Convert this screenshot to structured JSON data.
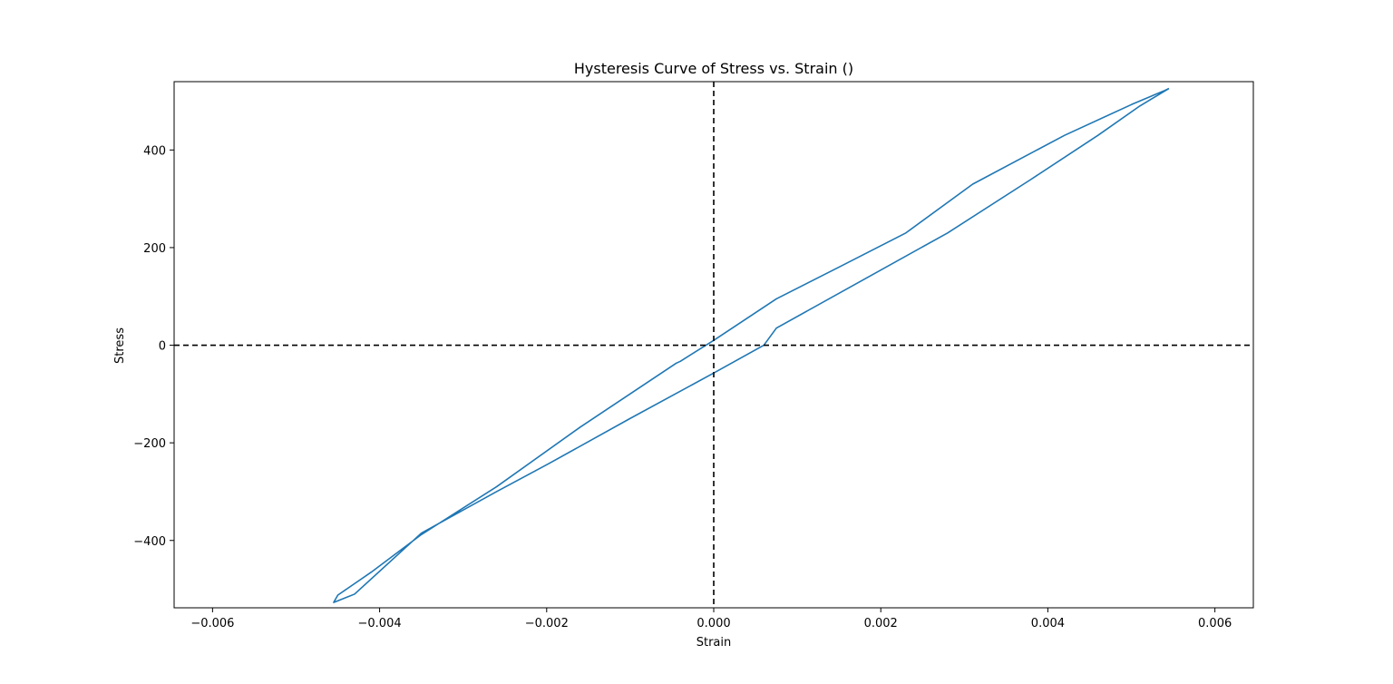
{
  "chart_data": {
    "type": "line",
    "title": "Hysteresis Curve of Stress vs. Strain ()",
    "xlabel": "Strain",
    "ylabel": "Stress",
    "xlim": [
      -0.00646,
      0.00646
    ],
    "ylim": [
      -538,
      540
    ],
    "x_ticks": [
      -0.006,
      -0.004,
      -0.002,
      0.0,
      0.002,
      0.004,
      0.006
    ],
    "x_tick_labels": [
      "−0.006",
      "−0.004",
      "−0.002",
      "0.000",
      "0.002",
      "0.004",
      "0.006"
    ],
    "y_ticks": [
      -400,
      -200,
      0,
      200,
      400
    ],
    "y_tick_labels": [
      "−400",
      "−200",
      "0",
      "200",
      "400"
    ],
    "grid": false,
    "reference_lines": [
      {
        "orientation": "horizontal",
        "value": 0,
        "style": "dashed",
        "color": "#000000"
      },
      {
        "orientation": "vertical",
        "value": 0,
        "style": "dashed",
        "color": "#000000"
      }
    ],
    "series": [
      {
        "color": "#1f77b4",
        "x": [
          0.00545,
          0.0051,
          0.0046,
          0.0038,
          0.0028,
          0.0018,
          0.00075,
          0.0006,
          0.0,
          -0.001,
          -0.002,
          -0.0026,
          -0.0035,
          -0.0043,
          -0.00455,
          -0.0045,
          -0.0041,
          -0.0035,
          -0.0026,
          -0.0016,
          -0.00045,
          -0.0004,
          0.0,
          0.00075,
          0.0015,
          0.0023,
          0.0031,
          0.0042,
          0.005,
          0.0054,
          0.00545
        ],
        "y": [
          526,
          490,
          430,
          340,
          230,
          135,
          35,
          0,
          -57,
          -150,
          -245,
          -300,
          -385,
          -510,
          -527,
          -512,
          -465,
          -388,
          -290,
          -168,
          -37,
          -33,
          10,
          95,
          160,
          230,
          330,
          430,
          493,
          522,
          526
        ]
      }
    ]
  }
}
